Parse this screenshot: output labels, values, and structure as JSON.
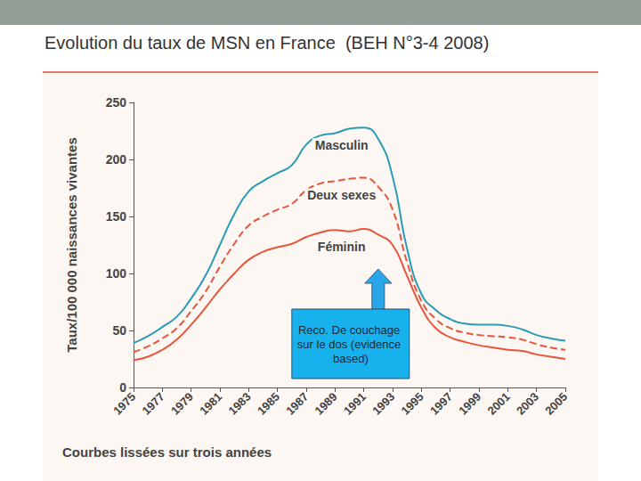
{
  "chart_data": {
    "type": "line",
    "title": "Evolution du taux de MSN en France  (BEH N°3-4 2008)",
    "y_label": "Taux/100 000 naissances vivantes",
    "note": "Courbes lissées sur trois années",
    "annotations": [
      {
        "text": "Reco. De couchage sur le dos (evidence based)",
        "x": 1992
      }
    ],
    "x": [
      1975,
      1976,
      1977,
      1978,
      1979,
      1980,
      1981,
      1982,
      1983,
      1984,
      1985,
      1986,
      1987,
      1988,
      1989,
      1990,
      1991,
      1992,
      1993,
      1994,
      1995,
      1996,
      1997,
      1998,
      1999,
      2000,
      2001,
      2002,
      2003,
      2004,
      2005
    ],
    "series": [
      {
        "name": "Masculin",
        "color": "#2a9bb5",
        "line_style": "solid",
        "values": [
          39,
          45,
          53,
          62,
          78,
          98,
          125,
          152,
          172,
          181,
          188,
          195,
          213,
          221,
          223,
          227,
          228,
          218,
          185,
          122,
          82,
          68,
          60,
          56,
          55,
          55,
          54,
          51,
          46,
          43,
          41
        ]
      },
      {
        "name": "Deux sexes",
        "color": "#e8553d",
        "line_style": "dashed",
        "values": [
          31,
          36,
          43,
          52,
          67,
          84,
          106,
          126,
          142,
          150,
          156,
          161,
          173,
          179,
          181,
          183,
          184,
          176,
          156,
          110,
          76,
          60,
          52,
          48,
          46,
          45,
          44,
          42,
          38,
          35,
          33
        ]
      },
      {
        "name": "Féminin",
        "color": "#e8553d",
        "line_style": "solid",
        "values": [
          24,
          27,
          33,
          42,
          55,
          70,
          86,
          100,
          112,
          119,
          123,
          126,
          132,
          136,
          138,
          137,
          139,
          134,
          125,
          98,
          70,
          52,
          44,
          40,
          37,
          35,
          33,
          32,
          29,
          27,
          25
        ]
      }
    ],
    "xlim": [
      1975,
      2005
    ],
    "xticks": [
      1975,
      1977,
      1979,
      1981,
      1983,
      1985,
      1987,
      1989,
      1991,
      1993,
      1995,
      1997,
      1999,
      2001,
      2003,
      2005
    ],
    "ylim": [
      0,
      250
    ],
    "yticks": [
      0,
      50,
      100,
      150,
      200,
      250
    ],
    "grid": false
  }
}
